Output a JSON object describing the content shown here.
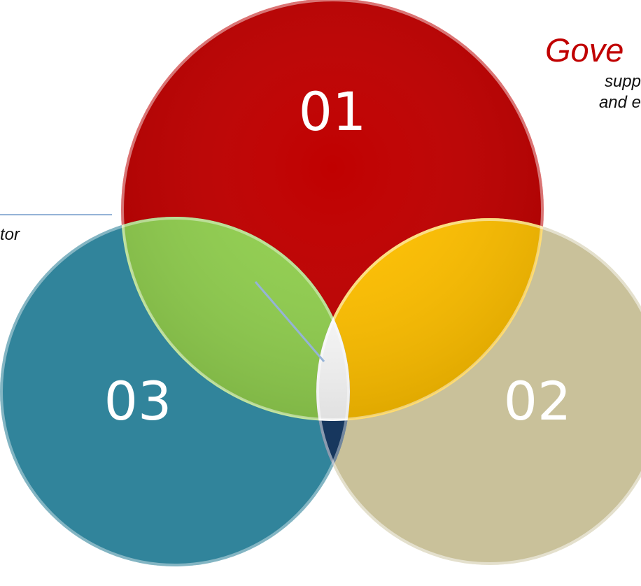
{
  "diagram": {
    "circles": [
      {
        "label": "01",
        "color": "#c00000"
      },
      {
        "label": "02",
        "color": "#c9c19a"
      },
      {
        "label": "03",
        "color": "#31849b"
      }
    ],
    "overlaps": {
      "circle1_circle3": "#92d050",
      "circle1_circle2": "#ffc000",
      "circle2_circle3": "#17375e",
      "center": "#ffffff"
    },
    "connector_color": "#95b3d7"
  },
  "callout_top_right": {
    "title": "Gove",
    "line1": "supp",
    "line2": "and e"
  },
  "callout_left": {
    "text": "tor"
  }
}
